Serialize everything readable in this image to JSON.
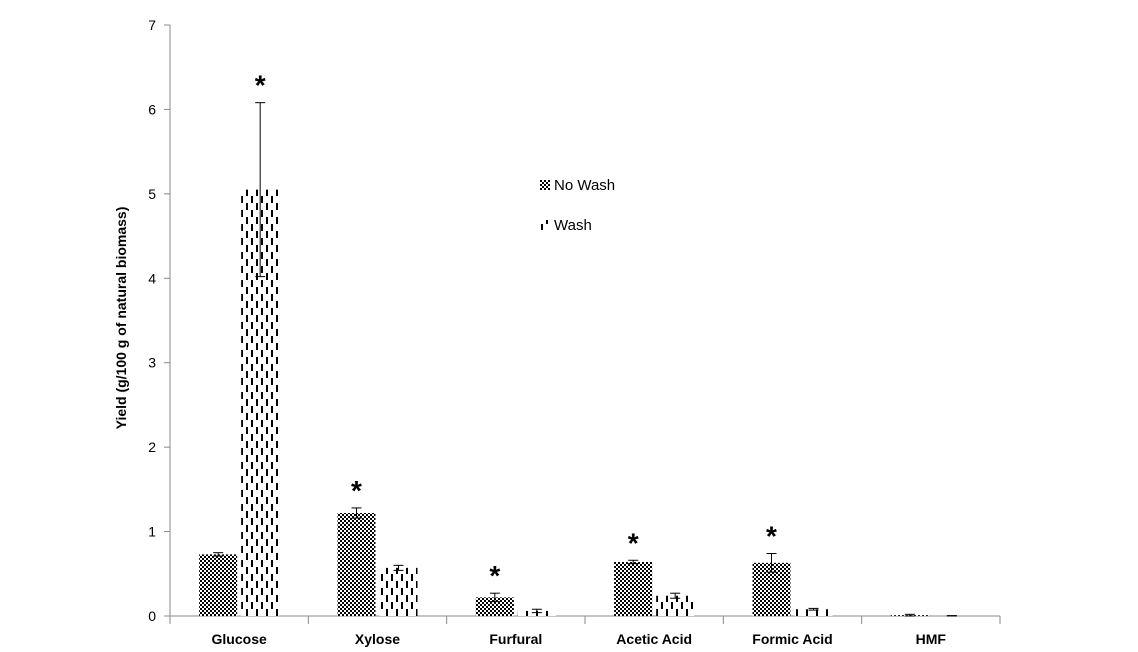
{
  "chart_data": {
    "type": "bar",
    "title": "",
    "ylabel": "Yield (g/100 g of natural biomass)",
    "xlabel": "",
    "ylim": [
      0,
      7
    ],
    "yticks": [
      0,
      1,
      2,
      3,
      4,
      5,
      6,
      7
    ],
    "categories": [
      "Glucose",
      "Xylose",
      "Furfural",
      "Acetic Acid",
      "Formic Acid",
      "HMF"
    ],
    "series": [
      {
        "name": "No Wash",
        "pattern": "dotted",
        "values": [
          0.73,
          1.22,
          0.22,
          0.64,
          0.63,
          0.01
        ],
        "errors": [
          0.02,
          0.06,
          0.05,
          0.02,
          0.11,
          0.01
        ]
      },
      {
        "name": "Wash",
        "pattern": "dashed-vertical",
        "values": [
          5.05,
          0.57,
          0.06,
          0.24,
          0.08,
          0.0
        ],
        "errors": [
          1.03,
          0.03,
          0.02,
          0.03,
          0.01,
          0.005
        ]
      }
    ],
    "significance_marker": "*",
    "significant": [
      {
        "category": "Glucose",
        "series": "Wash"
      },
      {
        "category": "Xylose",
        "series": "No Wash"
      },
      {
        "category": "Furfural",
        "series": "No Wash"
      },
      {
        "category": "Acetic Acid",
        "series": "No Wash"
      },
      {
        "category": "Formic Acid",
        "series": "No Wash"
      }
    ],
    "grid": false,
    "legend": "center"
  }
}
